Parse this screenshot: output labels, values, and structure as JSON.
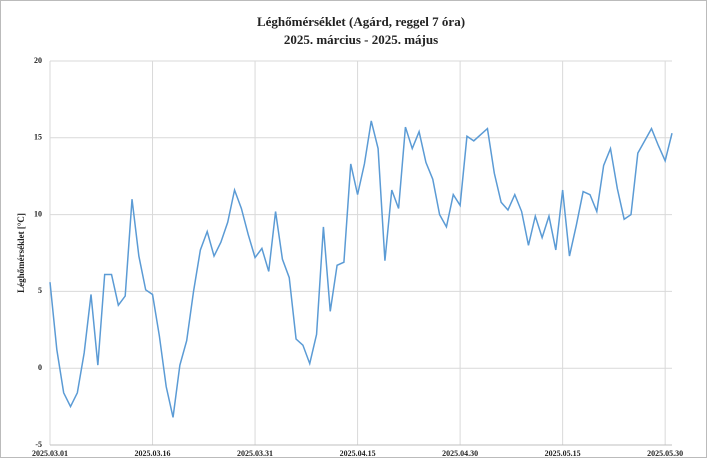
{
  "chart_data": {
    "type": "line",
    "title": "Léghőmérséklet  (Agárd, reggel 7 óra)",
    "subtitle": "2025. március  - 2025. május",
    "y_label": "Léghőmérséklet [°C]",
    "categories": [
      "2025.03.01",
      null,
      null,
      null,
      null,
      null,
      null,
      null,
      null,
      null,
      null,
      null,
      null,
      null,
      null,
      "2025.03.16",
      null,
      null,
      null,
      null,
      null,
      null,
      null,
      null,
      null,
      null,
      null,
      null,
      null,
      null,
      "2025.03.31",
      null,
      null,
      null,
      null,
      null,
      null,
      null,
      null,
      null,
      null,
      null,
      null,
      null,
      null,
      "2025.04.15",
      null,
      null,
      null,
      null,
      null,
      null,
      null,
      null,
      null,
      null,
      null,
      null,
      null,
      null,
      "2025.04.30",
      null,
      null,
      null,
      null,
      null,
      null,
      null,
      null,
      null,
      null,
      null,
      null,
      null,
      null,
      "2025.05.15",
      null,
      null,
      null,
      null,
      null,
      null,
      null,
      null,
      null,
      null,
      null,
      null,
      null,
      null,
      "2025.05.30",
      null
    ],
    "series": [
      {
        "name": "Léghőmérséklet",
        "color": "#5b9bd5",
        "values": [
          5.6,
          1.2,
          -1.6,
          -2.5,
          -1.6,
          1.0,
          4.8,
          0.2,
          6.1,
          6.1,
          4.1,
          4.7,
          11.0,
          7.3,
          5.1,
          4.8,
          2.1,
          -1.2,
          -3.2,
          0.2,
          1.8,
          5.0,
          7.7,
          8.9,
          7.3,
          8.2,
          9.5,
          11.6,
          10.4,
          8.7,
          7.2,
          7.8,
          6.3,
          10.2,
          7.1,
          5.9,
          1.9,
          1.5,
          0.3,
          2.2,
          9.2,
          3.7,
          6.7,
          6.9,
          13.3,
          11.3,
          13.3,
          16.1,
          14.3,
          7.0,
          11.6,
          10.4,
          15.7,
          14.3,
          15.4,
          13.4,
          12.3,
          10.0,
          9.2,
          11.3,
          10.6,
          15.1,
          14.8,
          15.2,
          15.6,
          12.7,
          10.8,
          10.3,
          11.3,
          10.2,
          8.0,
          9.9,
          8.5,
          9.9,
          7.7,
          11.6,
          7.3,
          9.3,
          11.5,
          11.3,
          10.2,
          13.2,
          14.3,
          11.7,
          9.7,
          10.0,
          14.0,
          14.8,
          15.6,
          14.5,
          13.5,
          15.3
        ]
      }
    ],
    "ylim": [
      -5,
      20
    ],
    "yticks": [
      -5,
      0,
      5,
      10,
      15,
      20
    ],
    "grid": true
  }
}
